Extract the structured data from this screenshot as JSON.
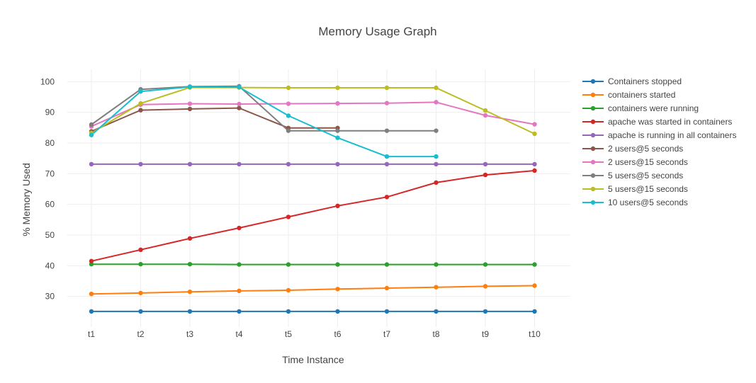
{
  "chart_data": {
    "type": "line",
    "title": "Memory  Usage  Graph",
    "xlabel": "Time Instance",
    "ylabel": "% Memory Used",
    "categories": [
      "t1",
      "t2",
      "t3",
      "t4",
      "t5",
      "t6",
      "t7",
      "t8",
      "t9",
      "t10"
    ],
    "ylim": [
      20,
      104
    ],
    "yticks": [
      30,
      40,
      50,
      60,
      70,
      80,
      90,
      100
    ],
    "grid": true,
    "legend_position": "right",
    "series": [
      {
        "name": "Containers stopped",
        "color": "#1f77b4",
        "values": [
          25.1,
          25.1,
          25.1,
          25.1,
          25.1,
          25.1,
          25.1,
          25.1,
          25.1,
          25.1
        ]
      },
      {
        "name": "containers started",
        "color": "#ff7f0e",
        "values": [
          30.8,
          31.1,
          31.5,
          31.8,
          32.0,
          32.4,
          32.7,
          33.0,
          33.3,
          33.5
        ]
      },
      {
        "name": "containers were running",
        "color": "#2ca02c",
        "values": [
          40.5,
          40.5,
          40.5,
          40.4,
          40.4,
          40.4,
          40.4,
          40.4,
          40.4,
          40.4
        ]
      },
      {
        "name": "apache was started in containers",
        "color": "#d62728",
        "values": [
          41.5,
          45.2,
          48.9,
          52.3,
          55.9,
          59.5,
          62.4,
          67.1,
          69.6,
          71.0
        ]
      },
      {
        "name": "apache is running in all containers",
        "color": "#9467bd",
        "values": [
          73.1,
          73.1,
          73.1,
          73.1,
          73.1,
          73.1,
          73.1,
          73.1,
          73.1,
          73.1
        ]
      },
      {
        "name": "2 users@5 seconds",
        "color": "#8c564b",
        "values": [
          83.8,
          90.7,
          91.1,
          91.4,
          84.9,
          84.9,
          null,
          null,
          null,
          null
        ]
      },
      {
        "name": "2 users@15 seconds",
        "color": "#e377c2",
        "values": [
          85.4,
          92.5,
          92.8,
          92.7,
          92.8,
          92.9,
          93.0,
          93.3,
          89.0,
          86.1
        ]
      },
      {
        "name": "5 users@5 seconds",
        "color": "#7f7f7f",
        "values": [
          86.0,
          97.5,
          98.4,
          98.5,
          84.0,
          84.0,
          84.0,
          84.0,
          null,
          null
        ]
      },
      {
        "name": "5 users@15 seconds",
        "color": "#bcbd22",
        "values": [
          83.3,
          92.9,
          98.1,
          98.1,
          98.0,
          98.0,
          98.0,
          98.0,
          90.6,
          83.0
        ]
      },
      {
        "name": "10 users@5 seconds",
        "color": "#17becf",
        "values": [
          82.6,
          96.8,
          98.3,
          98.2,
          88.9,
          81.7,
          75.6,
          75.6,
          null,
          null
        ]
      }
    ]
  }
}
